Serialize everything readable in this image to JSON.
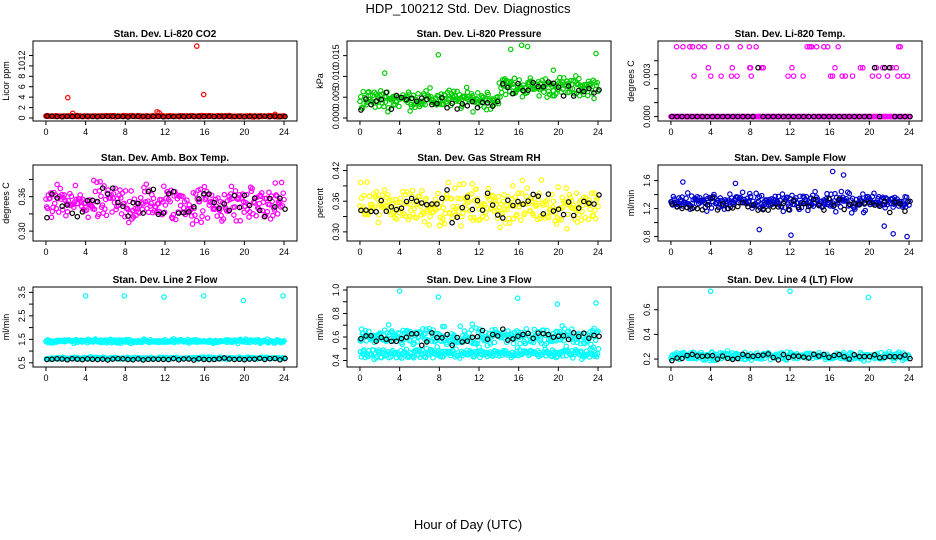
{
  "page": {
    "title": "HDP_100212  Std. Dev. Diagnostics",
    "x_label": "Hour of Day (UTC)"
  },
  "chart_data": [
    {
      "type": "scatter",
      "title": "Stan. Dev. Li-820 CO2",
      "ylabel": "Licor ppm",
      "color": "#ff0000",
      "ylim": [
        0,
        14.2
      ],
      "yticks": [
        0,
        2,
        4,
        6,
        8,
        10,
        12
      ],
      "base": {
        "kind": "band",
        "center": 0.35,
        "spread": 0.15
      },
      "outliers": [
        [
          2.2,
          3.9
        ],
        [
          2.7,
          0.9
        ],
        [
          11.2,
          1.2
        ],
        [
          11.4,
          1.0
        ],
        [
          15.2,
          13.8
        ],
        [
          15.9,
          4.5
        ],
        [
          23.1,
          0.7
        ]
      ],
      "black_base": {
        "kind": "band",
        "center": 0.3,
        "spread": 0.1
      }
    },
    {
      "type": "scatter",
      "title": "Stan. Dev. Li-820 Pressure",
      "ylabel": "kPa",
      "color": "#00cc00",
      "ylim": [
        0,
        0.0178
      ],
      "yticks": [
        0.0,
        0.005,
        0.01,
        0.015
      ],
      "ytick_labels": [
        "0.000",
        "0.005",
        "0.010",
        "0.015"
      ],
      "base": {
        "kind": "pressure",
        "low": 0.0045,
        "high": 0.0075,
        "spread": 0.0035
      },
      "outliers": [
        [
          7.9,
          0.0152
        ],
        [
          15.2,
          0.0165
        ],
        [
          16.3,
          0.0175
        ],
        [
          16.9,
          0.0172
        ],
        [
          23.8,
          0.0155
        ],
        [
          2.5,
          0.0108
        ],
        [
          19.5,
          0.0115
        ]
      ],
      "black_base": {
        "kind": "pressure",
        "low": 0.004,
        "high": 0.007,
        "spread": 0.003
      }
    },
    {
      "type": "scatter",
      "title": "Stan. Dev. Li-820 Temp.",
      "ylabel": "degrees C",
      "color": "#ff00ff",
      "ylim": [
        -0.0001,
        0.0052
      ],
      "yticks": [
        0.0,
        0.001,
        0.002,
        0.003,
        0.004
      ],
      "ytick_labels": [
        "0.000",
        "",
        "",
        "0.003",
        ""
      ],
      "base": {
        "kind": "levels",
        "levels": [
          0.0,
          0.0035,
          0.005,
          0.0029
        ]
      },
      "outliers": [
        [
          1.9,
          0.005
        ],
        [
          4.8,
          0.005
        ],
        [
          7.9,
          0.005
        ],
        [
          8.1,
          0.0029
        ],
        [
          11.8,
          0.0029
        ],
        [
          15.8,
          0.005
        ],
        [
          16.1,
          0.0029
        ]
      ],
      "black_base": {
        "kind": "levels",
        "levels": [
          0.0,
          0.0035
        ]
      }
    },
    {
      "type": "scatter",
      "title": "Stan. Dev. Amb. Box Temp.",
      "ylabel": "degrees C",
      "color": "#ff00ff",
      "ylim": [
        0.288,
        0.41
      ],
      "yticks": [
        0.3,
        0.33,
        0.36,
        0.39
      ],
      "ytick_labels": [
        "0.30",
        "",
        "0.36",
        ""
      ],
      "base": {
        "kind": "band",
        "center": 0.348,
        "spread": 0.05
      },
      "outliers": [],
      "black_base": {
        "kind": "band",
        "center": 0.348,
        "spread": 0.04
      }
    },
    {
      "type": "scatter",
      "title": "Stan. Dev. Gas Stream RH",
      "ylabel": "percent",
      "color": "#ffff00",
      "ylim": [
        0.288,
        0.425
      ],
      "yticks": [
        0.3,
        0.33,
        0.36,
        0.39,
        0.42
      ],
      "ytick_labels": [
        "0.30",
        "",
        "0.36",
        "",
        "0.42"
      ],
      "base": {
        "kind": "band",
        "center": 0.352,
        "spread": 0.055
      },
      "outliers": [],
      "black_base": {
        "kind": "band",
        "center": 0.35,
        "spread": 0.045
      }
    },
    {
      "type": "scatter",
      "title": "Stan. Dev. Sample Flow",
      "ylabel": "ml/min",
      "color": "#0000cc",
      "ylim": [
        0.78,
        1.78
      ],
      "yticks": [
        0.8,
        1.0,
        1.2,
        1.4,
        1.6
      ],
      "ytick_labels": [
        "0.8",
        "",
        "1.2",
        "",
        "1.6"
      ],
      "base": {
        "kind": "band",
        "center": 1.3,
        "spread": 0.18
      },
      "outliers": [
        [
          1.2,
          1.58
        ],
        [
          6.5,
          1.56
        ],
        [
          8.9,
          0.9
        ],
        [
          12.1,
          0.82
        ],
        [
          16.3,
          1.73
        ],
        [
          17.4,
          1.68
        ],
        [
          22.4,
          0.84
        ],
        [
          23.8,
          0.8
        ],
        [
          21.5,
          0.95
        ]
      ],
      "black_base": {
        "kind": "band",
        "center": 1.25,
        "spread": 0.15
      }
    },
    {
      "type": "scatter",
      "title": "Stan. Dev. Line 2 Flow",
      "ylabel": "ml/min",
      "color": "#00ffff",
      "ylim": [
        0.45,
        3.6
      ],
      "yticks": [
        0.5,
        1.0,
        1.5,
        2.0,
        2.5,
        3.0,
        3.5
      ],
      "ytick_labels": [
        "0.5",
        "",
        "1.5",
        "",
        "2.5",
        "",
        "3.5"
      ],
      "base": {
        "kind": "band",
        "center": 1.42,
        "spread": 0.12
      },
      "base2": {
        "kind": "band",
        "center": 0.7,
        "spread": 0.06
      },
      "outliers": [
        [
          4.0,
          3.35
        ],
        [
          7.9,
          3.35
        ],
        [
          11.9,
          3.3
        ],
        [
          15.9,
          3.35
        ],
        [
          19.9,
          3.15
        ],
        [
          23.9,
          3.35
        ]
      ],
      "black_base": {
        "kind": "band",
        "center": 0.65,
        "spread": 0.06
      }
    },
    {
      "type": "scatter",
      "title": "Stan. Dev. Line 3 Flow",
      "ylabel": "ml/min",
      "color": "#00ffff",
      "ylim": [
        0.37,
        1.0
      ],
      "yticks": [
        0.4,
        0.5,
        0.6,
        0.7,
        0.8,
        0.9,
        1.0
      ],
      "ytick_labels": [
        "0.4",
        "",
        "0.6",
        "",
        "0.8",
        "",
        "1.0"
      ],
      "base": {
        "kind": "band",
        "center": 0.6,
        "spread": 0.12
      },
      "base2": {
        "kind": "band",
        "center": 0.46,
        "spread": 0.06
      },
      "outliers": [
        [
          4.0,
          0.99
        ],
        [
          7.9,
          0.94
        ],
        [
          15.9,
          0.93
        ],
        [
          19.9,
          0.88
        ],
        [
          23.8,
          0.89
        ]
      ],
      "black_base": {
        "kind": "band",
        "center": 0.6,
        "spread": 0.09
      }
    },
    {
      "type": "scatter",
      "title": "Stan. Dev. Line 4 (LT) Flow",
      "ylabel": "ml/min",
      "color": "#00ffff",
      "ylim": [
        0.16,
        0.76
      ],
      "yticks": [
        0.2,
        0.4,
        0.6
      ],
      "ytick_labels": [
        "0.2",
        "0.4",
        "0.6"
      ],
      "base": {
        "kind": "band",
        "center": 0.225,
        "spread": 0.05
      },
      "outliers": [
        [
          4.0,
          0.75
        ],
        [
          12.0,
          0.75
        ],
        [
          19.9,
          0.7
        ]
      ],
      "black_base": {
        "kind": "band",
        "center": 0.22,
        "spread": 0.035
      }
    }
  ],
  "x_axis": {
    "xlim": [
      -0.5,
      24.5
    ],
    "xticks": [
      0,
      4,
      8,
      12,
      16,
      20,
      24
    ]
  }
}
